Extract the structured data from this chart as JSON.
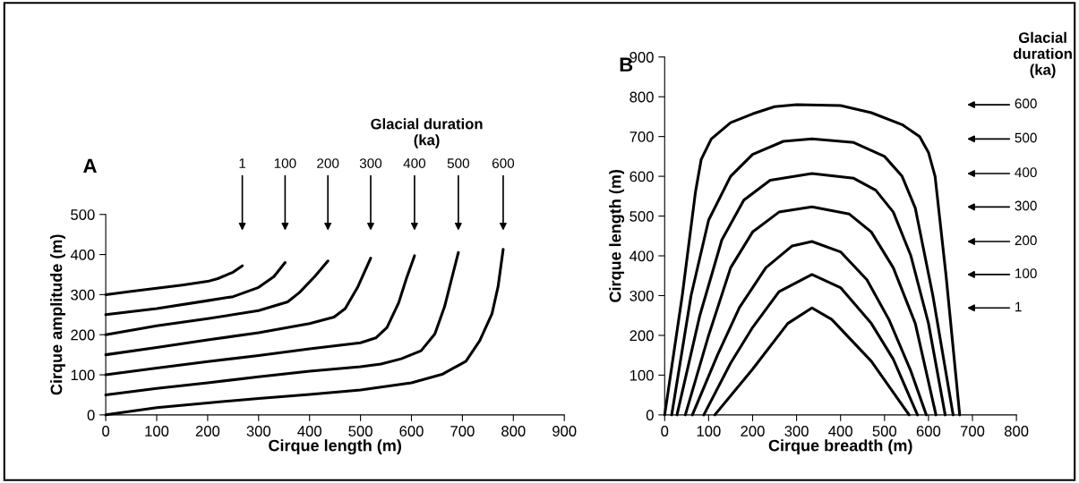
{
  "chart_data": [
    {
      "type": "line",
      "xlabel": "Cirque length (m)",
      "ylabel": "Cirque amplitude (m)",
      "xlim": [
        0,
        900
      ],
      "ylim": [
        0,
        500
      ],
      "xticks": [
        0,
        100,
        200,
        300,
        400,
        500,
        600,
        700,
        800,
        900
      ],
      "yticks": [
        0,
        100,
        200,
        300,
        400,
        500
      ],
      "grid": false,
      "marker": "none",
      "line_style": "solid",
      "series": [
        {
          "color": "#000000",
          "x": [
            0,
            50,
            100,
            150,
            200,
            220,
            250,
            268
          ],
          "values": [
            300,
            308,
            316,
            324,
            333,
            340,
            356,
            372
          ]
        },
        {
          "color": "#000000",
          "x": [
            0,
            100,
            200,
            250,
            300,
            330,
            352
          ],
          "values": [
            250,
            265,
            285,
            295,
            318,
            345,
            380
          ]
        },
        {
          "color": "#000000",
          "x": [
            0,
            100,
            200,
            300,
            357,
            380,
            410,
            436
          ],
          "values": [
            200,
            222,
            240,
            260,
            282,
            305,
            345,
            384
          ]
        },
        {
          "color": "#000000",
          "x": [
            0,
            100,
            200,
            300,
            400,
            448,
            470,
            495,
            520
          ],
          "values": [
            150,
            168,
            187,
            205,
            228,
            244,
            265,
            320,
            391
          ]
        },
        {
          "color": "#000000",
          "x": [
            0,
            100,
            200,
            300,
            400,
            500,
            530,
            552,
            575,
            590,
            606
          ],
          "values": [
            100,
            117,
            133,
            148,
            165,
            180,
            192,
            218,
            280,
            340,
            397
          ]
        },
        {
          "color": "#000000",
          "x": [
            0,
            100,
            200,
            300,
            400,
            500,
            540,
            580,
            619,
            646,
            665,
            692
          ],
          "values": [
            50,
            66,
            80,
            95,
            109,
            120,
            127,
            140,
            160,
            202,
            270,
            405
          ]
        },
        {
          "color": "#000000",
          "x": [
            0,
            100,
            200,
            300,
            400,
            500,
            600,
            660,
            707,
            734,
            758,
            770,
            780
          ],
          "values": [
            0,
            18,
            30,
            41,
            51,
            62,
            80,
            101,
            134,
            185,
            252,
            320,
            413
          ]
        }
      ],
      "annotations": [
        "A",
        "Glacial duration\n(ka)",
        "1",
        "100",
        "200",
        "300",
        "400",
        "500",
        "600"
      ]
    },
    {
      "type": "line",
      "xlabel": "Cirque breadth (m)",
      "ylabel": "Cirque length (m)",
      "xlim": [
        0,
        800
      ],
      "ylim": [
        0,
        900
      ],
      "xticks": [
        0,
        100,
        200,
        300,
        400,
        500,
        600,
        700,
        800
      ],
      "yticks": [
        0,
        100,
        200,
        300,
        400,
        500,
        600,
        700,
        800,
        900
      ],
      "grid": false,
      "marker": "none",
      "line_style": "solid",
      "series": [
        {
          "color": "#000000",
          "x": [
            114,
            200,
            280,
            335,
            380,
            470,
            556
          ],
          "values": [
            0,
            115,
            230,
            269,
            240,
            135,
            0
          ]
        },
        {
          "color": "#000000",
          "x": [
            89,
            150,
            200,
            260,
            335,
            400,
            470,
            520,
            575
          ],
          "values": [
            0,
            130,
            220,
            310,
            353,
            320,
            230,
            140,
            0
          ]
        },
        {
          "color": "#000000",
          "x": [
            63,
            120,
            170,
            230,
            290,
            335,
            400,
            460,
            510,
            560,
            595
          ],
          "values": [
            0,
            150,
            270,
            370,
            425,
            436,
            410,
            340,
            240,
            110,
            0
          ]
        },
        {
          "color": "#000000",
          "x": [
            47,
            100,
            150,
            200,
            260,
            335,
            420,
            470,
            520,
            570,
            617
          ],
          "values": [
            0,
            200,
            370,
            460,
            510,
            523,
            505,
            460,
            370,
            230,
            0
          ]
        },
        {
          "color": "#000000",
          "x": [
            28,
            80,
            130,
            180,
            240,
            335,
            430,
            480,
            520,
            560,
            600,
            638
          ],
          "values": [
            0,
            250,
            440,
            540,
            590,
            607,
            595,
            565,
            510,
            400,
            230,
            0
          ]
        },
        {
          "color": "#000000",
          "x": [
            16,
            60,
            100,
            150,
            200,
            270,
            335,
            430,
            500,
            540,
            570,
            610,
            656
          ],
          "values": [
            0,
            300,
            490,
            600,
            655,
            688,
            694,
            685,
            650,
            600,
            520,
            300,
            0
          ]
        },
        {
          "color": "#000000",
          "x": [
            0,
            40,
            70,
            83,
            106,
            150,
            200,
            250,
            300,
            400,
            470,
            540,
            580,
            600,
            615,
            640,
            671
          ],
          "values": [
            0,
            300,
            560,
            642,
            694,
            735,
            757,
            775,
            780,
            778,
            760,
            730,
            700,
            660,
            600,
            350,
            0
          ]
        }
      ],
      "annotations": [
        "B",
        "Glacial\nduration\n(ka)",
        "1",
        "100",
        "200",
        "300",
        "400",
        "500",
        "600"
      ]
    }
  ]
}
